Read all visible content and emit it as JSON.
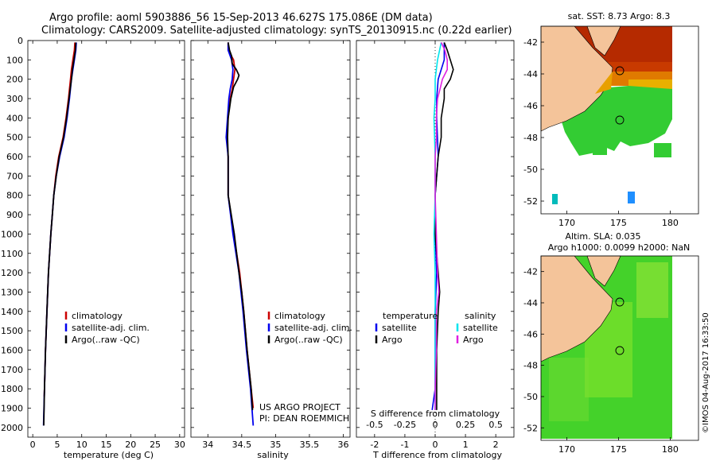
{
  "header": {
    "title_line1": "Argo profile: aoml 5903886_56 15-Sep-2013 46.627S 175.086E (DM data)",
    "title_line2": "Climatology: CARS2009. Satellite-adjusted climatology: synTS_20130915.nc (0.22d earlier)"
  },
  "colors": {
    "climatology": "#cc0000",
    "satellite": "#0000ee",
    "argo": "#000000",
    "salinity_satellite": "#00e5ee",
    "salinity_argo": "#e020e0",
    "land": "#f4c49a",
    "ocean_green": "#33cc33",
    "sst_red": "#b52a00"
  },
  "chart_data": [
    {
      "type": "line",
      "name": "temperature",
      "xlabel": "temperature (deg C)",
      "xlim": [
        -1,
        31
      ],
      "xticks": [
        "0",
        "5",
        "10",
        "15",
        "20",
        "25",
        "30"
      ],
      "xtick_values": [
        0,
        5,
        10,
        15,
        20,
        25,
        30
      ],
      "ylim": [
        2050,
        0
      ],
      "yticks": [
        "0",
        "100",
        "200",
        "300",
        "400",
        "500",
        "600",
        "700",
        "800",
        "900",
        "1000",
        "1100",
        "1200",
        "1300",
        "1400",
        "1500",
        "1600",
        "1700",
        "1800",
        "1900",
        "2000"
      ],
      "ytick_values": [
        0,
        100,
        200,
        300,
        400,
        500,
        600,
        700,
        800,
        900,
        1000,
        1100,
        1200,
        1300,
        1400,
        1500,
        1600,
        1700,
        1800,
        1900,
        2000
      ],
      "legend": [
        "climatology",
        "satellite-adj. clim.",
        "Argo(..raw -QC)"
      ],
      "series": [
        {
          "name": "climatology",
          "y": [
            10,
            50,
            100,
            150,
            200,
            300,
            400,
            500,
            600,
            700,
            800,
            900,
            1000,
            1200,
            1400,
            1600,
            1800,
            1840
          ],
          "x": [
            8.6,
            8.5,
            8.2,
            7.9,
            7.7,
            7.3,
            6.8,
            6.2,
            5.3,
            4.7,
            4.3,
            4.0,
            3.7,
            3.2,
            2.9,
            2.6,
            2.4,
            2.35
          ]
        },
        {
          "name": "satellite-adj. clim.",
          "y": [
            10,
            50,
            100,
            150,
            200,
            300,
            400,
            500,
            600,
            700,
            800,
            900,
            1000,
            1200,
            1400,
            1600,
            1800,
            1990
          ],
          "x": [
            8.9,
            8.8,
            8.5,
            8.2,
            7.9,
            7.5,
            7.0,
            6.4,
            5.5,
            4.8,
            4.3,
            4.0,
            3.7,
            3.2,
            2.9,
            2.6,
            2.4,
            2.2
          ]
        },
        {
          "name": "Argo(..raw -QC)",
          "y": [
            10,
            50,
            100,
            150,
            200,
            300,
            400,
            500,
            600,
            700,
            800,
            900,
            1000,
            1200,
            1400,
            1600,
            1800,
            1990
          ],
          "x": [
            8.8,
            8.7,
            8.4,
            8.1,
            7.9,
            7.4,
            6.9,
            6.3,
            5.4,
            4.8,
            4.3,
            4.0,
            3.7,
            3.2,
            2.9,
            2.6,
            2.4,
            2.25
          ]
        }
      ]
    },
    {
      "type": "line",
      "name": "salinity",
      "xlabel": "salinity",
      "xlim": [
        33.75,
        36.1
      ],
      "xticks": [
        "34",
        "34.5",
        "35",
        "35.5",
        "36"
      ],
      "xtick_values": [
        34,
        34.5,
        35,
        35.5,
        36
      ],
      "ylim": [
        2050,
        0
      ],
      "legend": [
        "climatology",
        "satellite-adj. clim.",
        "Argo(..raw -QC)"
      ],
      "annotation": [
        "US ARGO PROJECT",
        "PI: DEAN ROEMMICH"
      ],
      "series": [
        {
          "name": "climatology",
          "y": [
            10,
            50,
            100,
            150,
            200,
            250,
            300,
            400,
            500,
            600,
            700,
            800,
            1000,
            1200,
            1400,
            1600,
            1800,
            1900
          ],
          "x": [
            34.3,
            34.3,
            34.38,
            34.4,
            34.38,
            34.36,
            34.33,
            34.3,
            34.28,
            34.3,
            34.3,
            34.3,
            34.38,
            34.47,
            34.53,
            34.58,
            34.64,
            34.67
          ]
        },
        {
          "name": "satellite-adj. clim.",
          "y": [
            10,
            50,
            100,
            150,
            200,
            250,
            300,
            400,
            500,
            600,
            700,
            800,
            1000,
            1200,
            1400,
            1600,
            1800,
            1990
          ],
          "x": [
            34.3,
            34.3,
            34.35,
            34.37,
            34.36,
            34.33,
            34.31,
            34.29,
            34.27,
            34.3,
            34.3,
            34.3,
            34.37,
            34.46,
            34.52,
            34.57,
            34.63,
            34.67
          ]
        },
        {
          "name": "Argo(..raw -QC)",
          "y": [
            10,
            50,
            80,
            120,
            150,
            180,
            200,
            240,
            300,
            400,
            500,
            600,
            700,
            800,
            1000,
            1200,
            1300,
            1400,
            1600,
            1800,
            1910
          ],
          "x": [
            34.3,
            34.32,
            34.35,
            34.36,
            34.42,
            34.46,
            34.44,
            34.38,
            34.34,
            34.3,
            34.29,
            34.3,
            34.3,
            34.3,
            34.39,
            34.46,
            34.5,
            34.53,
            34.58,
            34.64,
            34.66
          ]
        }
      ]
    },
    {
      "type": "line",
      "name": "difference",
      "xlabel": "T difference from climatology",
      "xlabel_top": "S difference from climatology",
      "xlim": [
        -2.6,
        2.6
      ],
      "xticks": [
        "-2",
        "-1",
        "0",
        "1",
        "2"
      ],
      "xtick_values": [
        -2,
        -1,
        0,
        1,
        2
      ],
      "sticks": [
        "-0.5",
        "-0.25",
        "0",
        "0.25",
        "0.5"
      ],
      "stick_values": [
        -0.5,
        -0.25,
        0,
        0.25,
        0.5
      ],
      "ylim": [
        2050,
        0
      ],
      "legend_temperature": {
        "title": "temperature",
        "items": [
          "satellite",
          "Argo"
        ]
      },
      "legend_salinity": {
        "title": "salinity",
        "items": [
          "satellite",
          "Argo"
        ]
      },
      "series": [
        {
          "name": "T satellite",
          "y": [
            10,
            100,
            200,
            300,
            400,
            600,
            800,
            1000,
            1200,
            1400,
            1600,
            1800,
            1910
          ],
          "x": [
            0.3,
            0.3,
            0.1,
            0.05,
            0.05,
            0.1,
            0.0,
            0.0,
            0.05,
            0.0,
            0.0,
            0.0,
            -0.1
          ]
        },
        {
          "name": "T Argo",
          "y": [
            10,
            50,
            100,
            150,
            200,
            250,
            300,
            400,
            500,
            600,
            800,
            1000,
            1200,
            1300,
            1400,
            1600,
            1800,
            1910
          ],
          "x": [
            0.3,
            0.4,
            0.5,
            0.6,
            0.5,
            0.3,
            0.3,
            0.2,
            0.2,
            0.1,
            0.0,
            0.0,
            0.1,
            0.15,
            0.1,
            0.05,
            0.05,
            0.05
          ]
        },
        {
          "name": "S satellite",
          "y": [
            10,
            100,
            200,
            300,
            400,
            600,
            800,
            1000,
            1200,
            1400,
            1600,
            1800,
            1910
          ],
          "x": [
            0.05,
            0.02,
            0.0,
            0.0,
            -0.01,
            0.0,
            0.0,
            -0.01,
            0.0,
            0.0,
            0.0,
            0.0,
            0.0
          ]
        },
        {
          "name": "S Argo",
          "y": [
            10,
            50,
            100,
            150,
            200,
            250,
            300,
            400,
            500,
            600,
            800,
            1000,
            1200,
            1300,
            1400,
            1600,
            1800,
            1910
          ],
          "x": [
            0.05,
            0.08,
            0.1,
            0.1,
            0.06,
            0.04,
            0.02,
            0.01,
            0.01,
            0.0,
            0.0,
            0.01,
            0.02,
            0.03,
            0.01,
            0.01,
            0.0,
            0.0
          ]
        }
      ]
    }
  ],
  "maps": {
    "sst": {
      "title": "sat. SST: 8.73 Argo: 8.3",
      "lat_ticks": [
        "-42",
        "-44",
        "-46",
        "-48",
        "-50",
        "-52"
      ],
      "lat_values": [
        -42,
        -44,
        -46,
        -48,
        -50,
        -52
      ],
      "lon_ticks": [
        "170",
        "175",
        "180"
      ],
      "lon_values": [
        170,
        175,
        180
      ]
    },
    "sla": {
      "title_line1": "Altim. SLA: 0.035",
      "title_line2": "Argo h1000: 0.0099 h2000: NaN",
      "lat_ticks": [
        "-42",
        "-44",
        "-46",
        "-48",
        "-50",
        "-52"
      ],
      "lat_values": [
        -42,
        -44,
        -46,
        -48,
        -50,
        -52
      ],
      "lon_ticks": [
        "170",
        "175",
        "180"
      ],
      "lon_values": [
        170,
        175,
        180
      ]
    },
    "watermark": "©IMOS 04-Aug-2017 16:33:50"
  }
}
